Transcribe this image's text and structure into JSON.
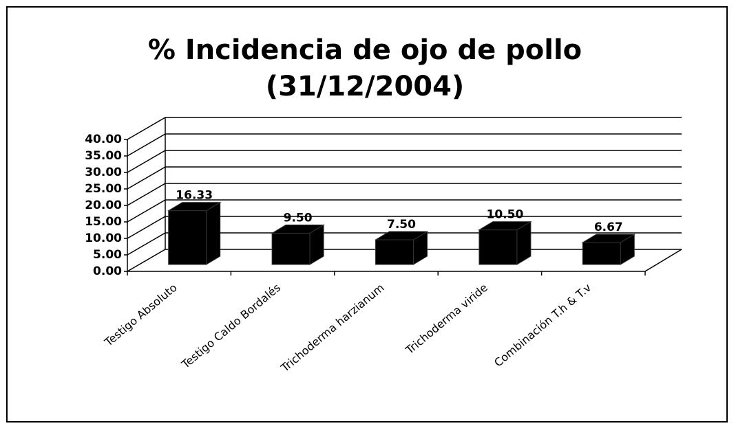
{
  "chart_data": {
    "type": "bar3d",
    "title": [
      "% Incidencia de ojo de pollo",
      "(31/12/2004)"
    ],
    "categories": [
      "Testigo Absoluto",
      "Testigo Caldo Bordalés",
      "Trichoderma harzianum",
      "Trichoderma viride",
      "Combinación T.h & T.v"
    ],
    "values": [
      16.33,
      9.5,
      7.5,
      10.5,
      6.67
    ],
    "value_labels": [
      "16.33",
      "9.50",
      "7.50",
      "10.50",
      "6.67"
    ],
    "color": "#000000",
    "ylim": [
      0,
      40
    ],
    "yticks": [
      {
        "value": 0,
        "label": "0.00"
      },
      {
        "value": 5,
        "label": "5.00"
      },
      {
        "value": 10,
        "label": "10.00"
      },
      {
        "value": 15,
        "label": "15.00"
      },
      {
        "value": 20,
        "label": "20.00"
      },
      {
        "value": 25,
        "label": "25.00"
      },
      {
        "value": 30,
        "label": "30.00"
      },
      {
        "value": 35,
        "label": "35.00"
      },
      {
        "value": 40,
        "label": "40.00"
      }
    ],
    "grid": true
  }
}
